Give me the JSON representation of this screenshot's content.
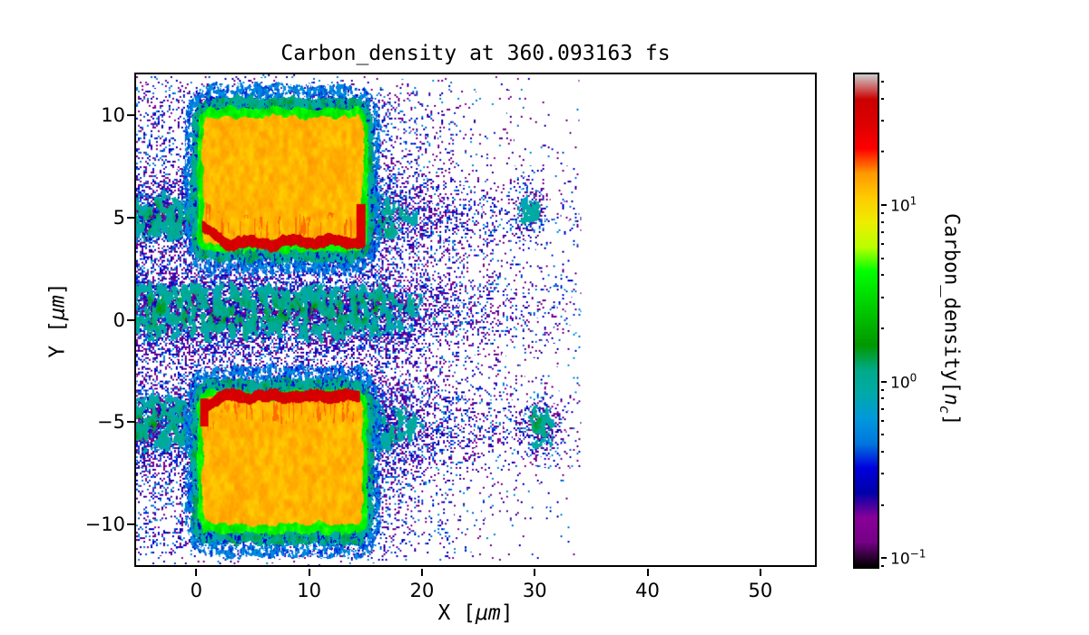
{
  "figure": {
    "title": "Carbon_density at 360.093163 fs",
    "background": "#ffffff"
  },
  "axes": {
    "xlabel_pre": "X [",
    "xlabel_math": "μm",
    "xlabel_post": "]",
    "ylabel_pre": "Y [",
    "ylabel_math": "μm",
    "ylabel_post": "]",
    "xlim": [
      -5.5,
      55
    ],
    "ylim": [
      -12.1,
      12.1
    ],
    "xticks": [
      {
        "label": "0",
        "value": 0
      },
      {
        "label": "10",
        "value": 10
      },
      {
        "label": "20",
        "value": 20
      },
      {
        "label": "30",
        "value": 30
      },
      {
        "label": "40",
        "value": 40
      },
      {
        "label": "50",
        "value": 50
      }
    ],
    "yticks": [
      {
        "label": "−10",
        "value": -10
      },
      {
        "label": "−5",
        "value": -5
      },
      {
        "label": "0",
        "value": 0
      },
      {
        "label": "5",
        "value": 5
      },
      {
        "label": "10",
        "value": 10
      }
    ]
  },
  "colorbar": {
    "label_pre": "Carbon_density[",
    "label_math": "n",
    "label_sub": "c",
    "label_post": "]",
    "scale": "log",
    "vmin_log10": -1.05,
    "vmax_log10": 1.75,
    "ticks": [
      {
        "label_base": "10",
        "label_exp": "1",
        "value": 10,
        "log10": 1
      },
      {
        "label_base": "10",
        "label_exp": "0",
        "value": 1,
        "log10": 0
      },
      {
        "label_base": "10",
        "label_exp": "−1",
        "value": 0.1,
        "log10": -1
      }
    ],
    "colormap": "nipy_spectral",
    "colormap_stops": [
      [
        0.0,
        "#000000"
      ],
      [
        0.05,
        "#770088"
      ],
      [
        0.1,
        "#880099"
      ],
      [
        0.15,
        "#0000AA"
      ],
      [
        0.2,
        "#0000DD"
      ],
      [
        0.25,
        "#0077DD"
      ],
      [
        0.3,
        "#0099DD"
      ],
      [
        0.35,
        "#00AAAA"
      ],
      [
        0.4,
        "#00AA88"
      ],
      [
        0.45,
        "#009900"
      ],
      [
        0.5,
        "#00BB00"
      ],
      [
        0.55,
        "#00DD00"
      ],
      [
        0.6,
        "#00FF00"
      ],
      [
        0.65,
        "#BBFF00"
      ],
      [
        0.7,
        "#EEEE00"
      ],
      [
        0.75,
        "#FFCC00"
      ],
      [
        0.8,
        "#FF9900"
      ],
      [
        0.85,
        "#FF0000"
      ],
      [
        0.9,
        "#DD0000"
      ],
      [
        0.95,
        "#CC0000"
      ],
      [
        1.0,
        "#CCCCCC"
      ]
    ]
  },
  "chart_data": {
    "type": "heatmap",
    "title": "Carbon_density at 360.093163 fs",
    "time_fs": 360.093163,
    "xlabel": "X [μm]",
    "ylabel": "Y [μm]",
    "value_label": "Carbon_density[n_c]",
    "value_scale": "log10",
    "xlim": [
      -5.5,
      55
    ],
    "ylim": [
      -12.1,
      12.1
    ],
    "value_log10_range": [
      -1.05,
      1.75
    ],
    "features": {
      "slabs": [
        {
          "x": [
            0.2,
            14.9
          ],
          "y": [
            3.6,
            10.2
          ],
          "corner_radius": 0.8,
          "density": 13
        },
        {
          "x": [
            0.2,
            14.9
          ],
          "y": [
            -10.3,
            -3.7
          ],
          "corner_radius": 0.8,
          "density": 13
        }
      ],
      "ridges": [
        {
          "side": "upper",
          "x": [
            0.35,
            14.75
          ],
          "y_base": 3.82,
          "left_rise": 0.85,
          "density": 32
        },
        {
          "side": "lower",
          "x": [
            0.35,
            14.45
          ],
          "y_base": -3.78,
          "left_rise": -0.5,
          "density": 32
        }
      ],
      "red_strips": [
        {
          "x": [
            14.15,
            14.92
          ],
          "y": [
            3.6,
            5.7
          ]
        },
        {
          "x": [
            0.2,
            0.95
          ],
          "y": [
            -5.25,
            -3.9
          ]
        }
      ],
      "edge_halo_density": 3.5,
      "halo_teal_density": 1.1,
      "streamers": [
        {
          "y_center": 0.4,
          "y_sigma": 1.9,
          "x_decay_from": 16,
          "x_decay_len": 9
        },
        {
          "y_center": 5.0,
          "y_sigma": 1.6,
          "x_decay_from": 16,
          "x_decay_len": 8
        },
        {
          "y_center": -5.2,
          "y_sigma": 1.9,
          "x_decay_from": 16,
          "x_decay_len": 8
        }
      ],
      "blobs": [
        {
          "x": 30.5,
          "y": -5.3,
          "sx": 1.9,
          "sy": 1.4,
          "amp": 1.05
        },
        {
          "x": 29.5,
          "y": 5.4,
          "sx": 1.7,
          "sy": 1.4,
          "amp": 0.75
        }
      ],
      "noise_cloud": {
        "p": 0.22,
        "x_decay_from": 17,
        "x_decay_len": 5.5,
        "x_max": 34,
        "dot_value": [
          0.12,
          0.6
        ]
      }
    }
  }
}
